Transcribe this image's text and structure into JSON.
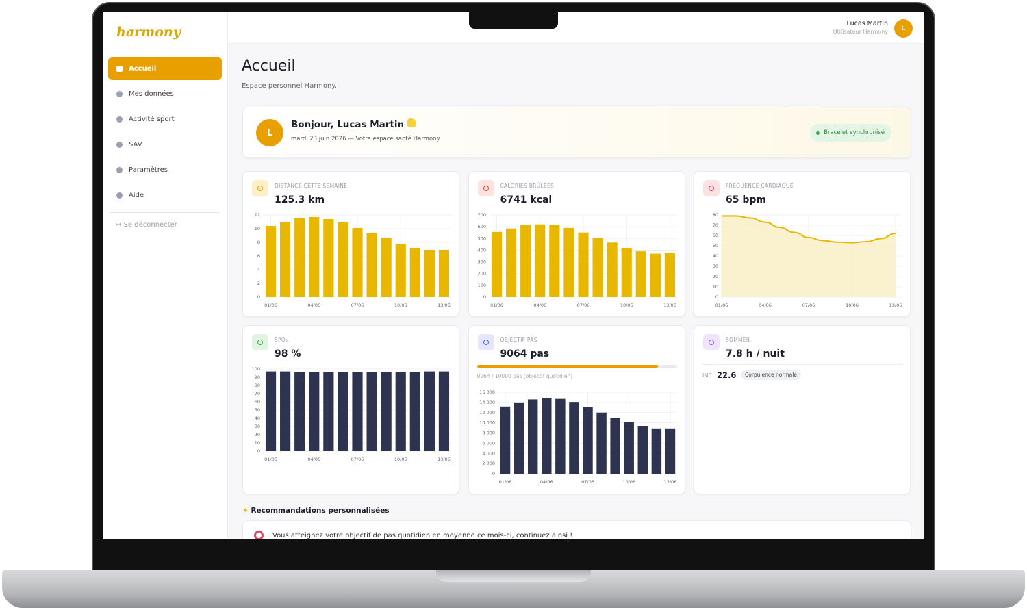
{
  "sidebar": {
    "logo": "harmony",
    "nav": [
      "Accueil",
      "Mes données",
      "Activité sport",
      "SAV",
      "Paramètres",
      "Aide"
    ],
    "logout": "Se déconnecter"
  },
  "topbar": {
    "user_name": "Lucas Martin",
    "user_role": "Utilisateur Harmony",
    "avatar": "L"
  },
  "header": {
    "title": "Accueil",
    "subtitle": "Espace personnel Harmony."
  },
  "welcome": {
    "avatar": "L",
    "greeting": "Bonjour, Lucas Martin",
    "date": "mardi 23 juin 2026 — Votre espace santé Harmony",
    "status": "Bracelet synchronisé"
  },
  "cards": [
    {
      "label": "DISTANCE CETTE SEMAINE",
      "value": "125.3 km"
    },
    {
      "label": "CALORIES BRÛLÉES",
      "value": "6741 kcal"
    },
    {
      "label": "FRÉQUENCE CARDIAQUE",
      "value": "65 bpm"
    },
    {
      "label": "SPO₂",
      "value": "98 %"
    },
    {
      "label": "OBJECTIF PAS",
      "value": "9064 pas",
      "progress": {
        "value": 9064,
        "max": 10000
      },
      "progress_label": "9064 / 10000 pas (objectif quotidien)"
    },
    {
      "label": "SOMMEIL",
      "value": "7.8 h / nuit",
      "bmi_label": "IMC",
      "bmi_value": "22.6",
      "bmi_status": "Corpulence normale"
    }
  ],
  "chart_data": [
    {
      "type": "bar",
      "categories": [
        "01/06",
        null,
        null,
        "04/06",
        null,
        null,
        "07/06",
        null,
        null,
        "10/06",
        null,
        null,
        "13/06"
      ],
      "values": [
        10.4,
        11,
        11.6,
        11.7,
        11.4,
        10.9,
        10.1,
        9.4,
        8.6,
        7.8,
        7.2,
        6.9,
        6.9
      ],
      "color": "#e8b800",
      "ylim": [
        0,
        12
      ],
      "yticks": [
        0,
        2,
        4,
        6,
        8,
        10,
        12
      ],
      "grid": true
    },
    {
      "type": "bar",
      "categories": [
        "01/06",
        null,
        null,
        "04/06",
        null,
        null,
        "07/06",
        null,
        null,
        "10/06",
        null,
        null,
        "13/06"
      ],
      "values": [
        555,
        585,
        615,
        620,
        615,
        590,
        550,
        505,
        465,
        420,
        390,
        370,
        375
      ],
      "color": "#e8b800",
      "ylim": [
        0,
        700
      ],
      "yticks": [
        0,
        100,
        200,
        300,
        400,
        500,
        600,
        700
      ],
      "grid": true
    },
    {
      "type": "area",
      "categories": [
        "01/06",
        null,
        null,
        "04/06",
        null,
        null,
        "07/06",
        null,
        null,
        "10/06",
        null,
        null,
        "13/06"
      ],
      "values": [
        79,
        79,
        77,
        73,
        68,
        63,
        58,
        55,
        53.5,
        53,
        54,
        57,
        62
      ],
      "color": "#e8b800",
      "fill": "#f9efc6",
      "ylim": [
        0,
        80
      ],
      "yticks": [
        0,
        10,
        20,
        30,
        40,
        50,
        60,
        70,
        80
      ],
      "grid": true
    },
    {
      "type": "bar",
      "categories": [
        "01/06",
        null,
        null,
        "04/06",
        null,
        null,
        "07/06",
        null,
        null,
        "10/06",
        null,
        null,
        "13/06"
      ],
      "values": [
        97,
        97,
        96,
        96,
        96,
        96,
        96,
        96,
        96,
        96,
        96,
        97,
        97
      ],
      "color": "#2e3350",
      "ylim": [
        0,
        100
      ],
      "yticks": [
        0,
        10,
        20,
        30,
        40,
        50,
        60,
        70,
        80,
        90,
        100
      ],
      "grid": true
    },
    {
      "type": "bar",
      "categories": [
        "01/06",
        null,
        null,
        "04/06",
        null,
        null,
        "07/06",
        null,
        null,
        "10/06",
        null,
        null,
        "13/06"
      ],
      "values": [
        13200,
        14000,
        14600,
        14900,
        14700,
        14100,
        13100,
        12000,
        11000,
        10100,
        9300,
        8900,
        8900
      ],
      "color": "#2e3350",
      "ylim": [
        0,
        16000
      ],
      "yticks": [
        0,
        {
          "value": 2000,
          "label": "2 000"
        },
        {
          "value": 4000,
          "label": "4 000"
        },
        {
          "value": 6000,
          "label": "6 000"
        },
        {
          "value": 8000,
          "label": "8 000"
        },
        {
          "value": 10000,
          "label": "10 000"
        },
        {
          "value": 12000,
          "label": "12 000"
        },
        {
          "value": 14000,
          "label": "14 000"
        },
        {
          "value": 16000,
          "label": "16 000"
        }
      ],
      "grid": true
    }
  ],
  "recommendations": {
    "title": "Recommandations personnalisées",
    "items": [
      "Vous atteignez votre objectif de pas quotidien en moyenne ce mois-ci, continuez ainsi !"
    ]
  }
}
